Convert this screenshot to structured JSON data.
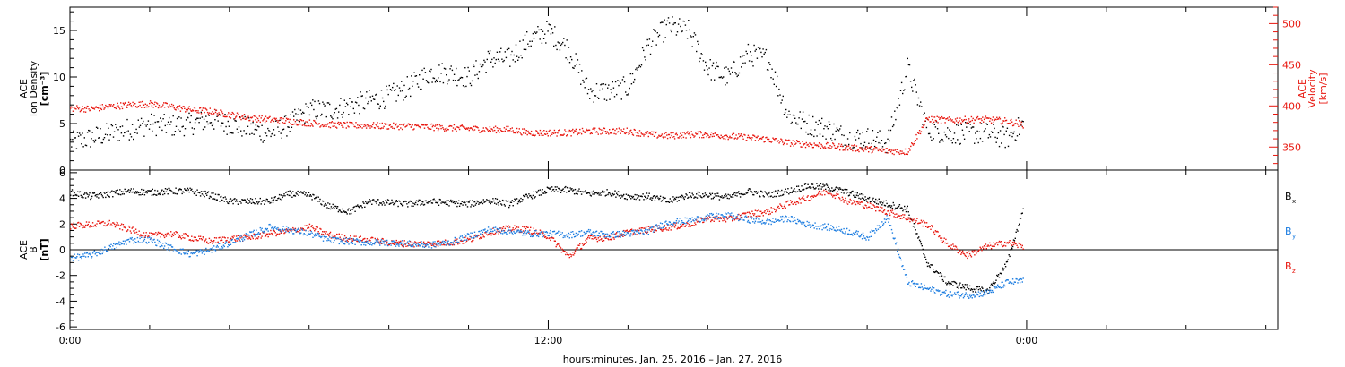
{
  "colors": {
    "black": "#000000",
    "red": "#e8150d",
    "blue": "#1b7ce0"
  },
  "footer": "hours:minutes, Jan. 25, 2016 – Jan. 27, 2016",
  "chart_data": [
    {
      "type": "scatter",
      "panel": "top",
      "xlim_hours": [
        0,
        30.3
      ],
      "x_ticks": [
        {
          "label": "0:00",
          "hour": 0
        },
        {
          "label": "12:00",
          "hour": 12
        },
        {
          "label": "0:00",
          "hour": 24
        }
      ],
      "left_axis": {
        "label_lines": [
          "ACE",
          "Ion Density",
          "[cm⁻³]"
        ],
        "ylim": [
          0,
          17.5
        ],
        "ticks": [
          0,
          5,
          10,
          15
        ],
        "tick_labels": [
          "0",
          "5",
          "10",
          "15"
        ]
      },
      "right_axis": {
        "label_lines": [
          "ACE",
          "Velocity",
          "[km/s]"
        ],
        "ylim": [
          322,
          520
        ],
        "ticks": [
          350,
          400,
          450,
          500
        ],
        "tick_labels": [
          "350",
          "400",
          "450",
          "500"
        ],
        "color": "#e8150d"
      },
      "series": [
        {
          "color": "#000000",
          "axis": "left",
          "hours": [
            0,
            0.5,
            1,
            1.5,
            2,
            2.5,
            3,
            3.5,
            4,
            4.5,
            5,
            5.5,
            6,
            6.5,
            7,
            7.5,
            8,
            8.5,
            9,
            9.5,
            10,
            10.5,
            11,
            11.5,
            12,
            12.5,
            13,
            13.5,
            14,
            14.5,
            15,
            15.5,
            16,
            16.5,
            17,
            17.5,
            18,
            18.5,
            19,
            19.5,
            20,
            20.5,
            21,
            21.5,
            22,
            22.5,
            23,
            23.5,
            23.9
          ],
          "values": [
            3.0,
            3.5,
            4.0,
            4.5,
            5.0,
            4.8,
            5.0,
            5.5,
            5.0,
            4.5,
            4.0,
            5.0,
            6.5,
            6.5,
            7.0,
            7.5,
            8.0,
            9.0,
            10.5,
            10.5,
            10.0,
            12.0,
            12.0,
            14.0,
            15.0,
            13.0,
            8.5,
            8.5,
            9.0,
            13.5,
            15.5,
            15.0,
            11.0,
            10.0,
            12.5,
            12.0,
            6.0,
            5.0,
            4.5,
            3.5,
            3.5,
            3.0,
            11.0,
            4.5,
            4.0,
            4.0,
            4.0,
            3.5,
            5.0
          ]
        },
        {
          "color": "#e8150d",
          "axis": "right",
          "hours": [
            0,
            0.5,
            1,
            1.5,
            2,
            2.5,
            3,
            3.5,
            4,
            4.5,
            5,
            5.5,
            6,
            6.5,
            7,
            7.5,
            8,
            8.5,
            9,
            9.5,
            10,
            10.5,
            11,
            11.5,
            12,
            12.5,
            13,
            13.5,
            14,
            14.5,
            15,
            15.5,
            16,
            16.5,
            17,
            17.5,
            18,
            18.5,
            19,
            19.5,
            20,
            20.5,
            21,
            21.5,
            22,
            22.5,
            23,
            23.5,
            23.9
          ],
          "values": [
            398,
            397,
            400,
            402,
            403,
            400,
            396,
            394,
            390,
            386,
            384,
            382,
            380,
            378,
            377,
            377,
            376,
            376,
            375,
            374,
            373,
            372,
            372,
            368,
            368,
            368,
            370,
            370,
            370,
            366,
            364,
            366,
            366,
            364,
            362,
            360,
            356,
            354,
            352,
            350,
            348,
            346,
            345,
            385,
            383,
            384,
            384,
            382,
            378
          ]
        }
      ]
    },
    {
      "type": "scatter",
      "panel": "bottom",
      "xlim_hours": [
        0,
        30.3
      ],
      "x_ticks": [
        {
          "label": "0:00",
          "hour": 0
        },
        {
          "label": "12:00",
          "hour": 12
        },
        {
          "label": "0:00",
          "hour": 24
        }
      ],
      "left_axis": {
        "label_lines": [
          "ACE",
          "B",
          "[nT]"
        ],
        "ylim": [
          -6.2,
          6.2
        ],
        "ticks": [
          -6,
          -4,
          -2,
          0,
          2,
          4,
          6
        ],
        "tick_labels": [
          "-6",
          "-4",
          "-2",
          "0",
          "2",
          "4",
          "6"
        ]
      },
      "legend": [
        {
          "sym": "B",
          "sub": "x",
          "color": "#000000"
        },
        {
          "sym": "B",
          "sub": "y",
          "color": "#1b7ce0"
        },
        {
          "sym": "B",
          "sub": "z",
          "color": "#e8150d"
        }
      ],
      "series": [
        {
          "color": "#000000",
          "hours": [
            0,
            0.5,
            1,
            1.5,
            2,
            2.5,
            3,
            3.5,
            4,
            4.5,
            5,
            5.5,
            6,
            6.5,
            7,
            7.5,
            8,
            8.5,
            9,
            9.5,
            10,
            10.5,
            11,
            11.5,
            12,
            12.5,
            13,
            13.5,
            14,
            14.5,
            15,
            15.5,
            16,
            16.5,
            17,
            17.5,
            18,
            18.5,
            19,
            19.5,
            20,
            20.5,
            21,
            21.5,
            22,
            22.5,
            23,
            23.5,
            23.9
          ],
          "values": [
            4.5,
            4.2,
            4.4,
            4.6,
            4.5,
            4.6,
            4.6,
            4.3,
            3.8,
            3.8,
            3.8,
            4.4,
            4.3,
            3.4,
            3.0,
            3.8,
            3.7,
            3.6,
            3.8,
            3.7,
            3.6,
            3.9,
            3.6,
            4.2,
            4.7,
            4.7,
            4.4,
            4.5,
            4.2,
            4.2,
            3.8,
            4.3,
            4.3,
            4.1,
            4.6,
            4.3,
            4.6,
            5.0,
            4.9,
            4.5,
            4.0,
            3.6,
            3.2,
            -1.0,
            -2.5,
            -2.9,
            -3.2,
            -1.0,
            3.2
          ]
        },
        {
          "color": "#e8150d",
          "hours": [
            0,
            0.5,
            1,
            1.5,
            2,
            2.5,
            3,
            3.5,
            4,
            4.5,
            5,
            5.5,
            6,
            6.5,
            7,
            7.5,
            8,
            8.5,
            9,
            9.5,
            10,
            10.5,
            11,
            11.5,
            12,
            12.5,
            13,
            13.5,
            14,
            14.5,
            15,
            15.5,
            16,
            16.5,
            17,
            17.5,
            18,
            18.5,
            19,
            19.5,
            20,
            20.5,
            21,
            21.5,
            22,
            22.5,
            23,
            23.5,
            23.9
          ],
          "values": [
            1.9,
            2.0,
            2.1,
            1.6,
            1.1,
            1.3,
            1.0,
            0.7,
            0.9,
            1.0,
            1.3,
            1.5,
            1.8,
            1.2,
            0.9,
            0.8,
            0.6,
            0.5,
            0.5,
            0.6,
            0.8,
            1.4,
            1.7,
            1.6,
            1.1,
            -0.5,
            0.9,
            1.0,
            1.4,
            1.6,
            1.8,
            2.0,
            2.5,
            2.4,
            2.8,
            3.0,
            3.6,
            4.1,
            4.6,
            3.8,
            3.5,
            3.0,
            2.5,
            2.0,
            0.5,
            -0.4,
            0.3,
            0.6,
            0.3
          ]
        },
        {
          "color": "#1b7ce0",
          "hours": [
            0,
            0.5,
            1,
            1.5,
            2,
            2.5,
            3,
            3.5,
            4,
            4.5,
            5,
            5.5,
            6,
            6.5,
            7,
            7.5,
            8,
            8.5,
            9,
            9.5,
            10,
            10.5,
            11,
            11.5,
            12,
            12.5,
            13,
            13.5,
            14,
            14.5,
            15,
            15.5,
            16,
            16.5,
            17,
            17.5,
            18,
            18.5,
            19,
            19.5,
            20,
            20.5,
            21,
            21.5,
            22,
            22.5,
            23,
            23.5,
            23.9
          ],
          "values": [
            -0.6,
            -0.4,
            0.2,
            0.8,
            0.8,
            0.2,
            -0.3,
            0.0,
            0.6,
            1.2,
            1.8,
            1.6,
            1.3,
            0.8,
            0.7,
            0.6,
            0.6,
            0.5,
            0.4,
            0.6,
            1.1,
            1.6,
            1.5,
            1.3,
            1.3,
            1.2,
            1.4,
            1.2,
            1.3,
            1.5,
            2.2,
            2.3,
            2.6,
            2.7,
            2.4,
            2.2,
            2.5,
            2.0,
            1.8,
            1.5,
            1.0,
            2.6,
            -2.5,
            -3.0,
            -3.4,
            -3.5,
            -3.3,
            -2.5,
            -2.4
          ]
        }
      ]
    }
  ]
}
